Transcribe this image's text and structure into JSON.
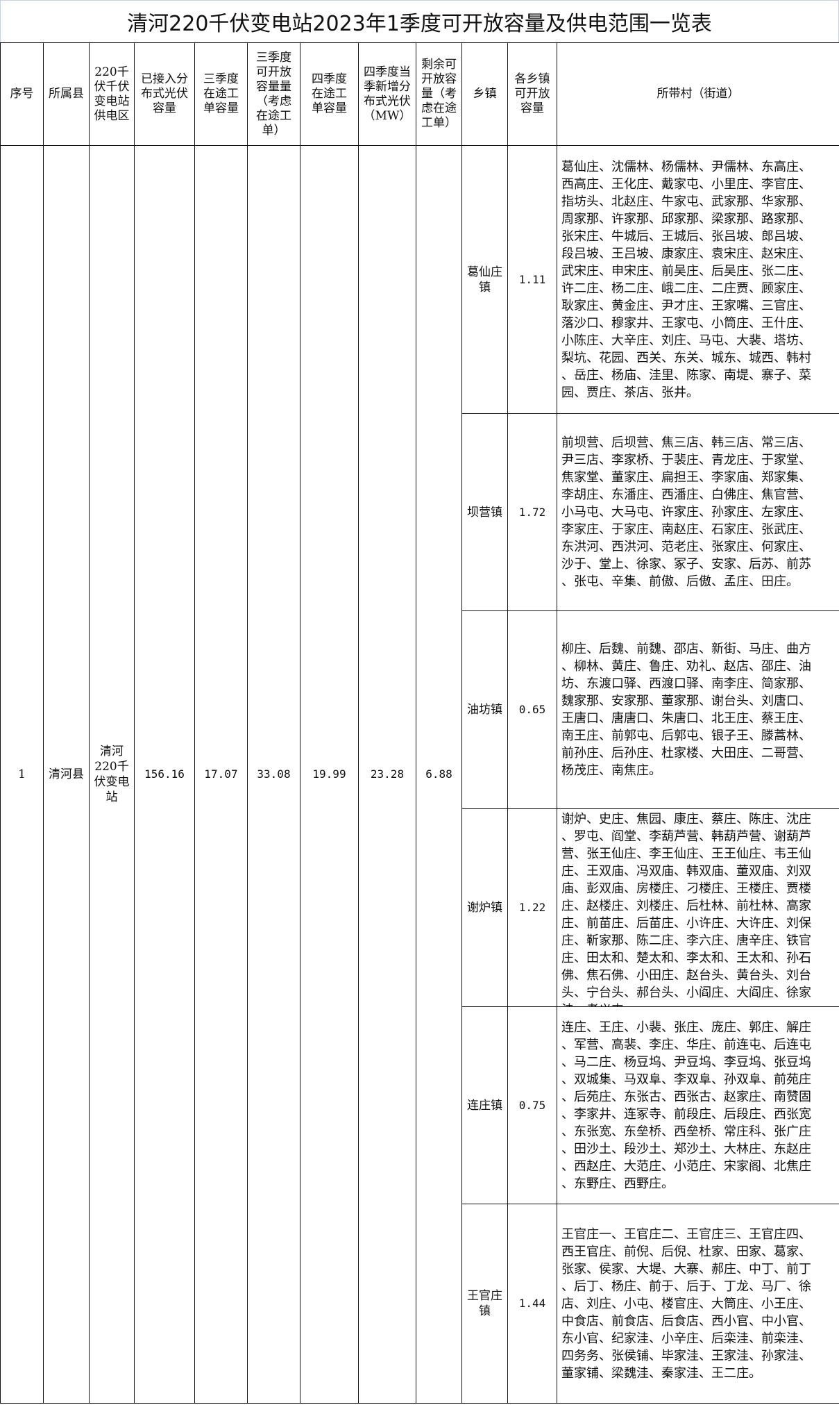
{
  "title": "清河220千伏变电站2023年1季度可开放容量及供电范围一览表",
  "headers": [
    "序号",
    "所属县",
    "220千\n伏千伏\n变电站\n供电区",
    "已接入分\n布式光伏\n容量",
    "三季度\n在途工\n单容量",
    "三季度\n可开放\n容量量\n（考虑\n在途工\n单）",
    "四季度\n在途工\n单容量",
    "四季度当\n季新增分\n布式光伏\n（MW）",
    "剩余可\n开放容\n量（考\n虑在途\n工单）",
    "乡镇",
    "各乡镇\n可开放\n容量",
    "所带村（街道）"
  ],
  "row": {
    "index": "1",
    "county": "清河县",
    "substation": "清河\n220千\n伏变电\n站",
    "connected_pv": "156.16",
    "q3_pending": "17.07",
    "q3_open": "33.08",
    "q4_pending": "19.99",
    "q4_new_pv": "23.28",
    "remaining": "6.88"
  },
  "towns": [
    {
      "name": "葛仙庄\n镇",
      "capacity": "1.11",
      "villages": "葛仙庄、沈儒林、杨儒林、尹儒林、东高庄、西高庄、王化庄、戴家屯、小里庄、李官庄、指坊头、北赵庄、牛家屯、武家那、华家那、周家那、许家那、邱家那、梁家那、路家那、张宋庄、牛城后、王城后、张吕坡、郎吕坡、段吕坡、王吕坡、康家庄、袁宋庄、赵宋庄、武宋庄、申宋庄、前吴庄、后吴庄、张二庄、许二庄、杨二庄、峨二庄、二庄贾、顾家庄、耿家庄、黄金庄、尹才庄、王家嘴、三官庄、落沙口、穆家井、王家屯、小筒庄、王什庄、小陈庄、大辛庄、刘庄、马屯、大裴、塔坊、梨坑、花园、西关、东关、城东、城西、韩村、岳庄、杨庙、洼里、陈家、南堤、寨子、菜园、贾庄、茶店、张井。"
    },
    {
      "name": "坝营镇",
      "capacity": "1.72",
      "villages": "前坝营、后坝营、焦三店、韩三店、常三店、尹三店、李家桥、于裴庄、青龙庄、于家堂、焦家堂、董家庄、扁担王、李家庙、郑家集、李胡庄、东潘庄、西潘庄、白佛庄、焦官营、小马屯、大马屯、许家庄、孙家庄、左家庄、李家庄、于家庄、南赵庄、石家庄、张武庄、东洪河、西洪河、范老庄、张家庄、何家庄、沙于、堂上、徐家、冢子、安家、后苏、前苏、张屯、辛集、前傲、后傲、孟庄、田庄。"
    },
    {
      "name": "油坊镇",
      "capacity": "0.65",
      "villages": "柳庄、后魏、前魏、邵店、新街、马庄、曲方、柳林、黄庄、鲁庄、劝礼、赵店、邵庄、油坊、东渡口驿、西渡口驿、南李庄、简家那、魏家那、安家那、董家那、谢台头、刘唐口、王唐口、唐唐口、朱唐口、北王庄、蔡王庄、南王庄、前郭屯、后郭屯、银子王、滕蒿林、前孙庄、后孙庄、杜家楼、大田庄、二哥营、杨茂庄、南焦庄。"
    },
    {
      "name": "谢炉镇",
      "capacity": "1.22",
      "villages": "谢炉、史庄、焦园、康庄、蔡庄、陈庄、沈庄、罗屯、阎堂、李葫芦营、韩葫芦营、谢葫芦营、张王仙庄、李王仙庄、王王仙庄、韦王仙庄、王双庙、冯双庙、韩双庙、董双庙、刘双庙、彭双庙、房楼庄、刁楼庄、王楼庄、贾楼庄、赵楼庄、刘楼庄、后杜林、前杜林、高家庄、前苗庄、后苗庄、小许庄、大许庄、刘保庄、靳家那、陈二庄、李六庄、唐辛庄、铁官庄、田太和、楚太和、李太和、王太和、孙石佛、焦石佛、小田庄、赵台头、黄台头、刘台头、宁台头、郝台头、小阎庄、大阎庄、徐家洼、孝义屯"
    },
    {
      "name": "连庄镇",
      "capacity": "0.75",
      "villages": "连庄、王庄、小裴、张庄、庞庄、郭庄、解庄、军营、高裴、李庄、华庄、前连屯、后连屯、马二庄、杨豆坞、尹豆坞、李豆坞、张豆坞、双城集、马双阜、李双阜、孙双阜、前苑庄、后苑庄、东张古、西张古、赵家庄、南赞固、李家井、连冢寺、前段庄、后段庄、西张宽、东张宽、东垒桥、西垒桥、常庄科、张广庄、田沙土、段沙土、郑沙土、大林庄、东赵庄、西赵庄、大范庄、小范庄、宋家阁、北焦庄、东野庄、西野庄。"
    },
    {
      "name": "王官庄\n镇",
      "capacity": "1.44",
      "villages": "王官庄一、王官庄二、王官庄三、王官庄四、西王官庄、前倪、后倪、杜家、田家、葛家、张家、侯家、大堤、大寨、郝庄、中丁、前丁、后丁、杨庄、前于、后于、丁龙、马厂、徐店、刘庄、小屯、楼官庄、大筒庄、小王庄、中食店、前食店、后食店、西小官、中小官、东小官、纪家洼、小辛庄、后栾洼、前栾洼、四务务、张侯铺、毕家洼、王家洼、孙家洼、董家铺、梁魏洼、秦家洼、王二庄。"
    }
  ]
}
